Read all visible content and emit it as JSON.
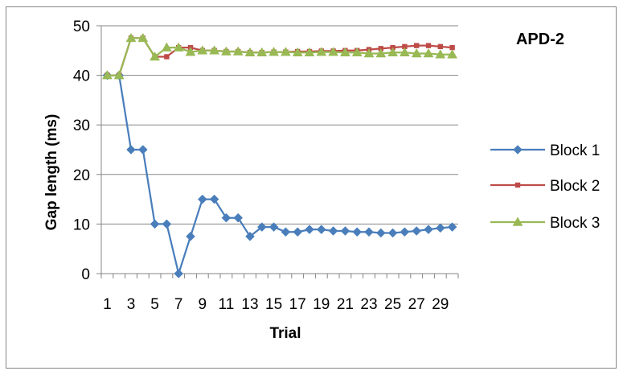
{
  "chart_data": {
    "type": "line",
    "title": "APD-2",
    "xlabel": "Trial",
    "ylabel": "Gap length (ms)",
    "ylim": [
      0,
      50
    ],
    "yticks": [
      0,
      10,
      20,
      30,
      40,
      50
    ],
    "grid": "horizontal",
    "legend": "right",
    "x": [
      1,
      2,
      3,
      4,
      5,
      6,
      7,
      8,
      9,
      10,
      11,
      12,
      13,
      14,
      15,
      16,
      17,
      18,
      19,
      20,
      21,
      22,
      23,
      24,
      25,
      26,
      27,
      28,
      29,
      30
    ],
    "xtick_labels": [
      "1",
      "3",
      "5",
      "7",
      "9",
      "11",
      "13",
      "15",
      "17",
      "19",
      "21",
      "23",
      "25",
      "27",
      "29"
    ],
    "series": [
      {
        "name": "Block 1",
        "color": "#4a7ebb",
        "marker": "diamond",
        "values": [
          40,
          40,
          25,
          25,
          10,
          10,
          0,
          7.5,
          15,
          15,
          11.25,
          11.25,
          7.5,
          9.4,
          9.4,
          8.4,
          8.4,
          8.9,
          8.9,
          8.6,
          8.6,
          8.4,
          8.4,
          8.2,
          8.2,
          8.4,
          8.6,
          8.9,
          9.2,
          9.4
        ]
      },
      {
        "name": "Block 2",
        "color": "#be4b48",
        "marker": "square",
        "values": [
          40,
          40,
          47.5,
          47.5,
          43.75,
          43.75,
          45.6,
          45.6,
          45,
          45,
          44.8,
          44.8,
          44.6,
          44.6,
          44.7,
          44.7,
          44.8,
          44.8,
          44.9,
          44.9,
          45,
          45,
          45.2,
          45.4,
          45.6,
          45.8,
          46,
          46,
          45.8,
          45.6
        ]
      },
      {
        "name": "Block 3",
        "color": "#98b954",
        "marker": "triangle",
        "values": [
          40,
          40,
          47.5,
          47.5,
          43.75,
          45.6,
          45.6,
          44.7,
          45,
          45,
          44.8,
          44.8,
          44.6,
          44.6,
          44.7,
          44.7,
          44.6,
          44.6,
          44.7,
          44.7,
          44.6,
          44.6,
          44.4,
          44.4,
          44.6,
          44.6,
          44.4,
          44.4,
          44.2,
          44.2
        ]
      }
    ]
  }
}
